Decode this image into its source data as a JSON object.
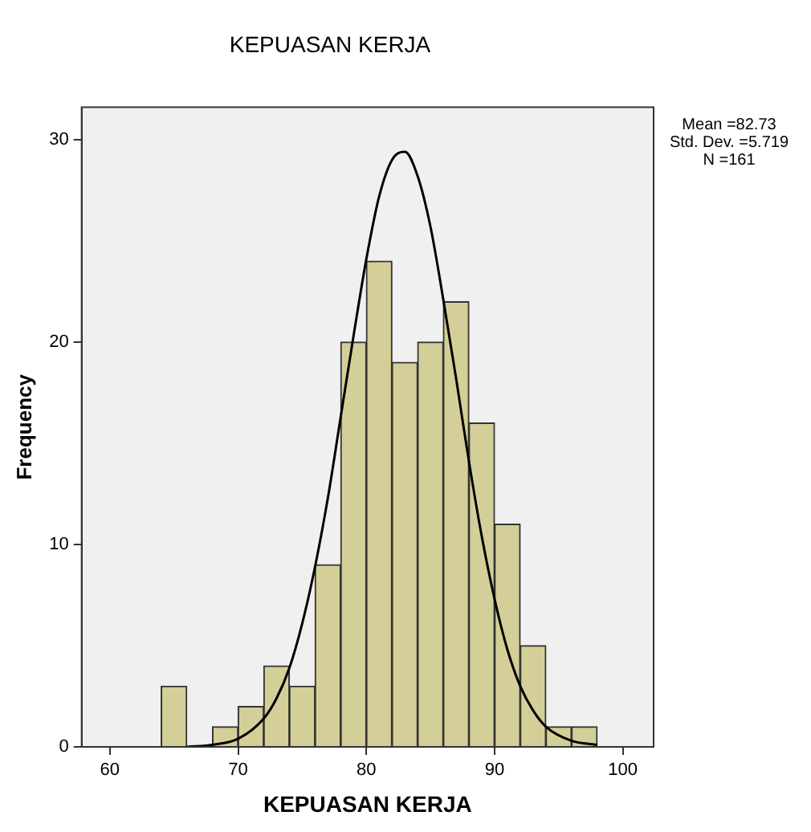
{
  "chart_data": {
    "type": "histogram",
    "title": "KEPUASAN KERJA",
    "xlabel": "KEPUASAN KERJA",
    "ylabel": "Frequency",
    "series": [
      {
        "color": "#d4cf98",
        "bins": [
          64,
          66,
          68,
          70,
          72,
          74,
          76,
          78,
          80,
          82,
          84,
          86,
          88,
          90,
          92,
          94,
          96,
          98
        ],
        "values": [
          3,
          0,
          1,
          2,
          4,
          3,
          9,
          20,
          24,
          19,
          20,
          22,
          16,
          11,
          5,
          1,
          1
        ]
      },
      {
        "type": "line",
        "color": "#000000",
        "x": [
          66,
          68,
          70,
          72,
          73,
          74,
          75,
          76,
          77,
          78,
          79,
          80,
          81,
          82,
          83,
          84,
          85,
          86,
          87,
          88,
          89,
          90,
          91,
          92,
          93,
          94,
          96,
          98
        ],
        "values": [
          0,
          0.1,
          0.4,
          1.4,
          2.4,
          3.9,
          6.1,
          8.9,
          12.3,
          16.3,
          20.3,
          24.1,
          27.2,
          29,
          29.4,
          28.2,
          25.7,
          22.1,
          18.2,
          14.1,
          10.4,
          7.3,
          4.8,
          3,
          1.8,
          1,
          0.3,
          0.1
        ]
      }
    ],
    "xlim": [
      57.8,
      102.4
    ],
    "xticks": [
      60,
      70,
      80,
      90,
      100
    ],
    "ylim": [
      0,
      31.6
    ],
    "yticks": [
      0,
      10,
      20,
      30
    ],
    "grid": false,
    "legend": false,
    "marker": "none",
    "line_style": "solid",
    "annotations": [
      "Mean =82.73",
      "Std. Dev. =5.719",
      "N =161"
    ]
  }
}
